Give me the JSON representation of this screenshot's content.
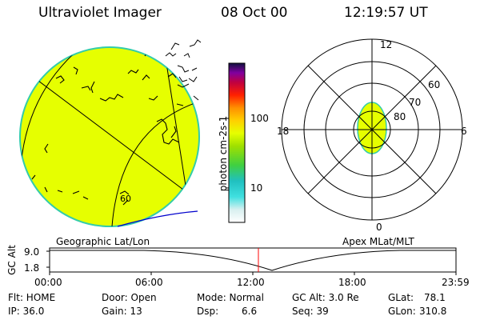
{
  "header": {
    "instrument": "Ultraviolet Imager",
    "date": "08 Oct 00",
    "time": "12:19:57 UT"
  },
  "colorbar": {
    "unit_label": "photon cm-2s-1",
    "ticks": [
      "100",
      "10"
    ]
  },
  "polar_plot": {
    "mlt_labels": [
      "12",
      "18",
      "6",
      "0"
    ],
    "lat_labels": [
      "60",
      "70",
      "80"
    ]
  },
  "earth_image": {
    "grid_label": "60"
  },
  "panel_labels": {
    "left": "Geographic Lat/Lon",
    "right": "Apex MLat/MLT"
  },
  "altitude_plot": {
    "ylabel": "GC Alt",
    "yticks": [
      "9.0",
      "1.8"
    ],
    "xticks": [
      "00:00",
      "06:00",
      "12:00",
      "18:00",
      "23:59"
    ],
    "current_time_hours": 12.33
  },
  "status": {
    "flt": "Flt: HOME",
    "ip": "IP: 36.0",
    "door": "Door: Open",
    "gain": "Gain: 13",
    "mode": "Mode: Normal",
    "dsp_label": "Dsp:",
    "dsp_value": "6.6",
    "gc_alt": "GC Alt: 3.0 Re",
    "seq": "Seq: 39",
    "glat_label": "GLat:",
    "glat_value": "78.1",
    "glon_label": "GLon:",
    "glon_value": "310.8"
  },
  "colors": {
    "aurora_fill": "#e6ff00",
    "limb": "#33ccaa",
    "coast": "#000000",
    "marker": "#ff0000",
    "curve_blue": "#0000cc"
  }
}
